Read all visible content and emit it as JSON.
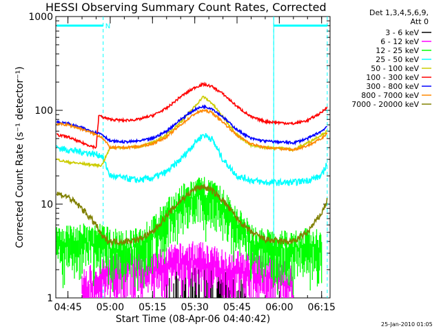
{
  "chart_data": {
    "type": "line",
    "title": "HESSI Observing Summary Count Rates, Corrected",
    "xlabel": "Start Time (08-Apr-06 04:40:42)",
    "ylabel": "Corrected Count Rate (s⁻¹ detector⁻¹)",
    "footer_date": "25-Jan-2010 01:05",
    "yscale": "log",
    "ylim": [
      1,
      1000
    ],
    "xlim_minutes": [
      "04:40:42",
      "06:18:00"
    ],
    "ytick_labels": [
      "1",
      "10",
      "100",
      "1000"
    ],
    "xtick_labels": [
      "04:45",
      "05:00",
      "05:15",
      "05:30",
      "05:45",
      "06:00",
      "06:15"
    ],
    "xtick_minutes": [
      285,
      300,
      315,
      330,
      345,
      360,
      375
    ],
    "legend_header": [
      "Det 1,3,4,5,6,9,",
      "Att 0"
    ],
    "legend_position": "right",
    "grid": false,
    "annotations": {
      "night_marker_label": "N",
      "night_bar_start_min": 281,
      "night_bar_end_min": 297.5,
      "night2_bar_start_min": 358,
      "night2_bar_end_min": 377,
      "dashed_lines_min": [
        297.5,
        358,
        377
      ],
      "night_bar_level": 800
    },
    "series": [
      {
        "name": "3 - 6 keV",
        "color": "#000000",
        "style": "bars_sparse",
        "x": [
          320,
          324,
          328,
          330,
          332,
          334,
          336,
          339,
          342,
          348
        ],
        "y": [
          1.4,
          1.6,
          1.8,
          2.2,
          2.0,
          1.9,
          2.4,
          1.7,
          1.5,
          1.3
        ]
      },
      {
        "name": "6 - 12 keV",
        "color": "#ff00ff",
        "style": "bars_noise",
        "x": [
          290,
          295,
          300,
          305,
          310,
          315,
          320,
          325,
          330,
          335,
          340,
          345,
          350,
          355,
          360,
          365
        ],
        "y": [
          1.6,
          2.0,
          2.3,
          2.6,
          2.8,
          2.5,
          2.9,
          3.1,
          3.3,
          3.0,
          2.7,
          2.6,
          2.5,
          2.3,
          2.1,
          1.8
        ]
      },
      {
        "name": "12 - 25 keV",
        "color": "#00ff00",
        "style": "bars_noise",
        "x": [
          281,
          290,
          297,
          300,
          305,
          310,
          315,
          320,
          325,
          330,
          333,
          336,
          340,
          345,
          350,
          355,
          360,
          365,
          370,
          375
        ],
        "y": [
          5,
          5,
          5,
          4.5,
          4.2,
          4.5,
          6,
          9,
          13,
          15,
          16,
          15,
          12,
          8,
          5,
          4.5,
          4.2,
          4.4,
          4.5,
          4.6
        ]
      },
      {
        "name": "25 - 50 keV",
        "color": "#00ffff",
        "style": "line_noise",
        "x": [
          281,
          285,
          290,
          295,
          297,
          300,
          305,
          310,
          315,
          320,
          325,
          330,
          333,
          336,
          340,
          345,
          350,
          355,
          360,
          365,
          370,
          375,
          377
        ],
        "y": [
          40,
          38,
          36,
          34,
          33,
          20,
          19,
          18,
          19,
          22,
          30,
          45,
          55,
          50,
          30,
          20,
          18,
          17,
          17,
          17,
          18,
          20,
          28
        ]
      },
      {
        "name": "50 - 100 keV",
        "color": "#cccc00",
        "style": "line",
        "x": [
          281,
          285,
          290,
          295,
          297,
          300,
          305,
          310,
          315,
          320,
          325,
          330,
          333,
          336,
          340,
          345,
          350,
          355,
          360,
          365,
          370,
          375,
          377
        ],
        "y": [
          30,
          28,
          27,
          26,
          26,
          40,
          40,
          41,
          45,
          55,
          75,
          110,
          140,
          120,
          85,
          55,
          42,
          40,
          40,
          38,
          45,
          55,
          60
        ]
      },
      {
        "name": "100 - 300 keV",
        "color": "#ff0000",
        "style": "line",
        "x": [
          281,
          285,
          290,
          295,
          296,
          297,
          300,
          305,
          310,
          315,
          320,
          325,
          330,
          333,
          336,
          340,
          345,
          350,
          355,
          360,
          365,
          370,
          375,
          377
        ],
        "y": [
          55,
          52,
          45,
          40,
          90,
          85,
          80,
          78,
          80,
          88,
          105,
          140,
          175,
          190,
          180,
          150,
          110,
          85,
          76,
          74,
          72,
          78,
          95,
          110
        ]
      },
      {
        "name": "300 - 800 keV",
        "color": "#0000ff",
        "style": "line",
        "x": [
          281,
          285,
          290,
          295,
          297,
          300,
          305,
          310,
          315,
          320,
          325,
          330,
          333,
          336,
          340,
          345,
          350,
          355,
          360,
          365,
          370,
          375,
          377
        ],
        "y": [
          75,
          72,
          65,
          58,
          56,
          47,
          46,
          47,
          50,
          60,
          80,
          102,
          110,
          105,
          85,
          62,
          50,
          47,
          46,
          45,
          50,
          60,
          68
        ]
      },
      {
        "name": "800 - 7000 keV",
        "color": "#ff8800",
        "style": "line",
        "x": [
          281,
          285,
          290,
          295,
          297,
          300,
          305,
          310,
          315,
          320,
          325,
          330,
          333,
          336,
          340,
          345,
          350,
          355,
          360,
          365,
          370,
          375,
          377
        ],
        "y": [
          72,
          70,
          63,
          55,
          52,
          40,
          40,
          41,
          44,
          52,
          70,
          92,
          100,
          95,
          75,
          54,
          44,
          40,
          39,
          38,
          42,
          50,
          58
        ]
      },
      {
        "name": "7000 - 20000 keV",
        "color": "#808000",
        "style": "line_noise",
        "x": [
          281,
          285,
          290,
          295,
          297,
          300,
          305,
          310,
          315,
          320,
          325,
          330,
          333,
          336,
          340,
          345,
          350,
          355,
          360,
          365,
          370,
          375,
          377
        ],
        "y": [
          13,
          12,
          9,
          6,
          4.5,
          4,
          4,
          4.2,
          5,
          7.5,
          11,
          14.5,
          15.5,
          14,
          11,
          7,
          5,
          4.2,
          4,
          4,
          5,
          8,
          11
        ]
      }
    ]
  }
}
